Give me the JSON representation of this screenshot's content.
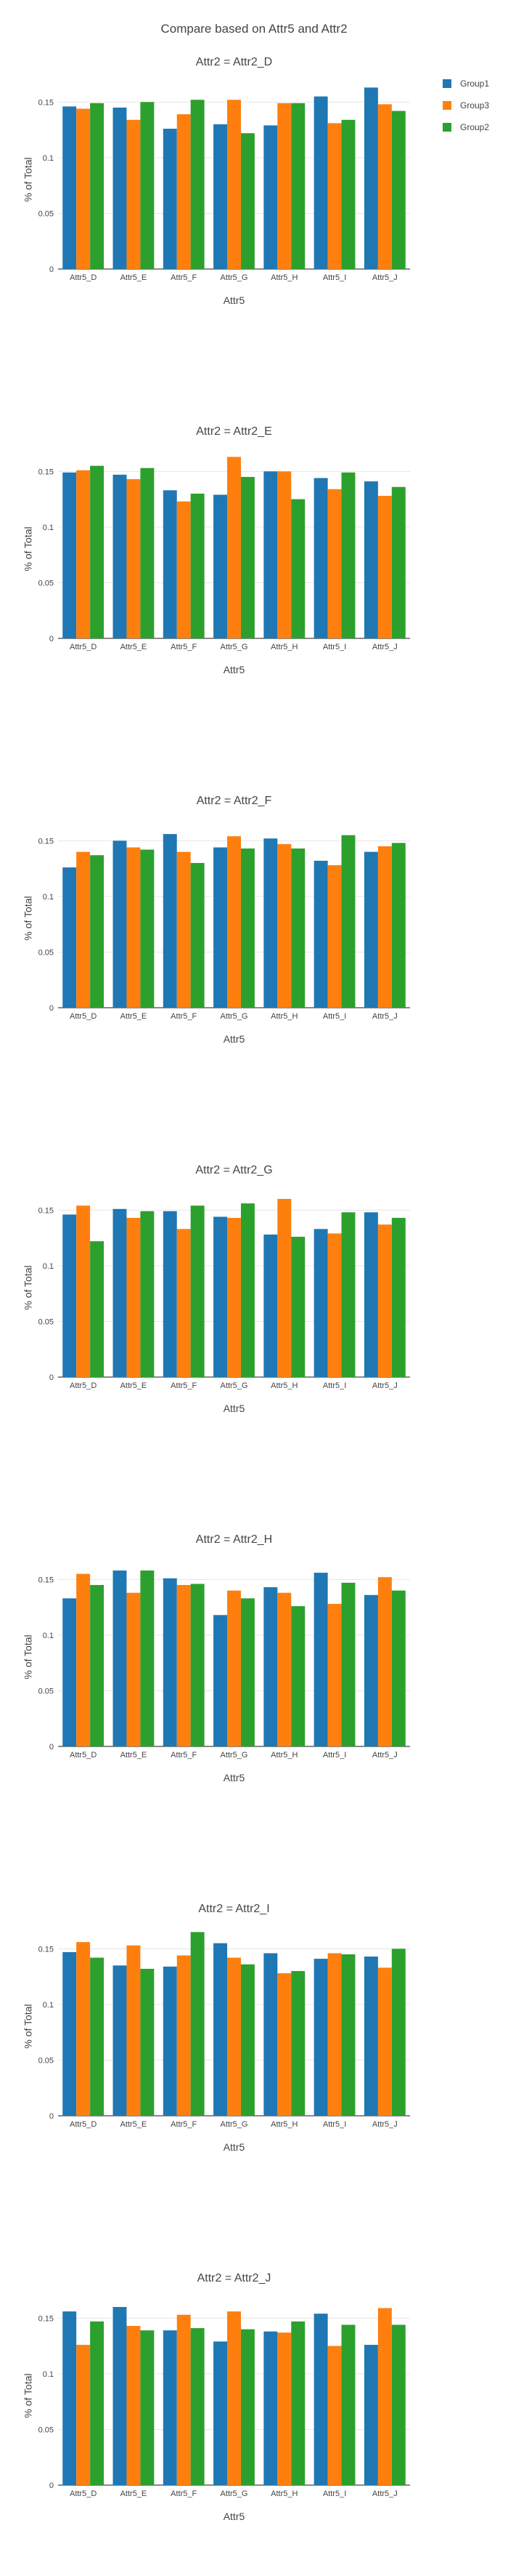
{
  "page_title": "Compare based on Attr5 and Attr2",
  "colors": {
    "Group1": "#1f77b4",
    "Group3": "#ff7f0e",
    "Group2": "#2ca02c"
  },
  "legend": [
    "Group1",
    "Group3",
    "Group2"
  ],
  "chart_data": [
    {
      "type": "bar",
      "title": "Attr2 = Attr2_D",
      "xlabel": "Attr5",
      "ylabel": "% of Total",
      "ylim": [
        0,
        0.16
      ],
      "yticks": [
        "0",
        "0.05",
        "0.1",
        "0.15"
      ],
      "categories": [
        "Attr5_D",
        "Attr5_E",
        "Attr5_F",
        "Attr5_G",
        "Attr5_H",
        "Attr5_I",
        "Attr5_J"
      ],
      "series": [
        {
          "name": "Group1",
          "values": [
            0.146,
            0.145,
            0.126,
            0.13,
            0.129,
            0.155,
            0.163
          ]
        },
        {
          "name": "Group3",
          "values": [
            0.144,
            0.134,
            0.139,
            0.152,
            0.149,
            0.131,
            0.148
          ]
        },
        {
          "name": "Group2",
          "values": [
            0.149,
            0.15,
            0.152,
            0.122,
            0.149,
            0.134,
            0.142
          ]
        }
      ]
    },
    {
      "type": "bar",
      "title": "Attr2 = Attr2_E",
      "xlabel": "Attr5",
      "ylabel": "% of Total",
      "ylim": [
        0,
        0.16
      ],
      "yticks": [
        "0",
        "0.05",
        "0.1",
        "0.15"
      ],
      "categories": [
        "Attr5_D",
        "Attr5_E",
        "Attr5_F",
        "Attr5_G",
        "Attr5_H",
        "Attr5_I",
        "Attr5_J"
      ],
      "series": [
        {
          "name": "Group1",
          "values": [
            0.149,
            0.147,
            0.133,
            0.129,
            0.15,
            0.144,
            0.141
          ]
        },
        {
          "name": "Group3",
          "values": [
            0.151,
            0.143,
            0.123,
            0.163,
            0.15,
            0.134,
            0.128
          ]
        },
        {
          "name": "Group2",
          "values": [
            0.155,
            0.153,
            0.13,
            0.145,
            0.125,
            0.149,
            0.136
          ]
        }
      ]
    },
    {
      "type": "bar",
      "title": "Attr2 = Attr2_F",
      "xlabel": "Attr5",
      "ylabel": "% of Total",
      "ylim": [
        0,
        0.16
      ],
      "yticks": [
        "0",
        "0.05",
        "0.1",
        "0.15"
      ],
      "categories": [
        "Attr5_D",
        "Attr5_E",
        "Attr5_F",
        "Attr5_G",
        "Attr5_H",
        "Attr5_I",
        "Attr5_J"
      ],
      "series": [
        {
          "name": "Group1",
          "values": [
            0.126,
            0.15,
            0.156,
            0.144,
            0.152,
            0.132,
            0.14
          ]
        },
        {
          "name": "Group3",
          "values": [
            0.14,
            0.144,
            0.14,
            0.154,
            0.147,
            0.128,
            0.145
          ]
        },
        {
          "name": "Group2",
          "values": [
            0.137,
            0.142,
            0.13,
            0.143,
            0.143,
            0.155,
            0.148
          ]
        }
      ]
    },
    {
      "type": "bar",
      "title": "Attr2 = Attr2_G",
      "xlabel": "Attr5",
      "ylabel": "% of Total",
      "ylim": [
        0,
        0.16
      ],
      "yticks": [
        "0",
        "0.05",
        "0.1",
        "0.15"
      ],
      "categories": [
        "Attr5_D",
        "Attr5_E",
        "Attr5_F",
        "Attr5_G",
        "Attr5_H",
        "Attr5_I",
        "Attr5_J"
      ],
      "series": [
        {
          "name": "Group1",
          "values": [
            0.146,
            0.151,
            0.149,
            0.144,
            0.128,
            0.133,
            0.148
          ]
        },
        {
          "name": "Group3",
          "values": [
            0.154,
            0.143,
            0.133,
            0.143,
            0.16,
            0.129,
            0.137
          ]
        },
        {
          "name": "Group2",
          "values": [
            0.122,
            0.149,
            0.154,
            0.156,
            0.126,
            0.148,
            0.143
          ]
        }
      ]
    },
    {
      "type": "bar",
      "title": "Attr2 = Attr2_H",
      "xlabel": "Attr5",
      "ylabel": "% of Total",
      "ylim": [
        0,
        0.16
      ],
      "yticks": [
        "0",
        "0.05",
        "0.1",
        "0.15"
      ],
      "categories": [
        "Attr5_D",
        "Attr5_E",
        "Attr5_F",
        "Attr5_G",
        "Attr5_H",
        "Attr5_I",
        "Attr5_J"
      ],
      "series": [
        {
          "name": "Group1",
          "values": [
            0.133,
            0.158,
            0.151,
            0.118,
            0.143,
            0.156,
            0.136
          ]
        },
        {
          "name": "Group3",
          "values": [
            0.155,
            0.138,
            0.145,
            0.14,
            0.138,
            0.128,
            0.152
          ]
        },
        {
          "name": "Group2",
          "values": [
            0.145,
            0.158,
            0.146,
            0.133,
            0.126,
            0.147,
            0.14
          ]
        }
      ]
    },
    {
      "type": "bar",
      "title": "Attr2 = Attr2_I",
      "xlabel": "Attr5",
      "ylabel": "% of Total",
      "ylim": [
        0,
        0.16
      ],
      "yticks": [
        "0",
        "0.05",
        "0.1",
        "0.15"
      ],
      "categories": [
        "Attr5_D",
        "Attr5_E",
        "Attr5_F",
        "Attr5_G",
        "Attr5_H",
        "Attr5_I",
        "Attr5_J"
      ],
      "series": [
        {
          "name": "Group1",
          "values": [
            0.147,
            0.135,
            0.134,
            0.155,
            0.146,
            0.141,
            0.143
          ]
        },
        {
          "name": "Group3",
          "values": [
            0.156,
            0.153,
            0.144,
            0.142,
            0.128,
            0.146,
            0.133
          ]
        },
        {
          "name": "Group2",
          "values": [
            0.142,
            0.132,
            0.165,
            0.136,
            0.13,
            0.145,
            0.15
          ]
        }
      ]
    },
    {
      "type": "bar",
      "title": "Attr2 = Attr2_J",
      "xlabel": "Attr5",
      "ylabel": "% of Total",
      "ylim": [
        0,
        0.16
      ],
      "yticks": [
        "0",
        "0.05",
        "0.1",
        "0.15"
      ],
      "categories": [
        "Attr5_D",
        "Attr5_E",
        "Attr5_F",
        "Attr5_G",
        "Attr5_H",
        "Attr5_I",
        "Attr5_J"
      ],
      "series": [
        {
          "name": "Group1",
          "values": [
            0.156,
            0.16,
            0.139,
            0.129,
            0.138,
            0.154,
            0.126
          ]
        },
        {
          "name": "Group3",
          "values": [
            0.126,
            0.143,
            0.153,
            0.156,
            0.137,
            0.125,
            0.159
          ]
        },
        {
          "name": "Group2",
          "values": [
            0.147,
            0.139,
            0.141,
            0.14,
            0.147,
            0.144,
            0.144
          ]
        }
      ]
    }
  ]
}
